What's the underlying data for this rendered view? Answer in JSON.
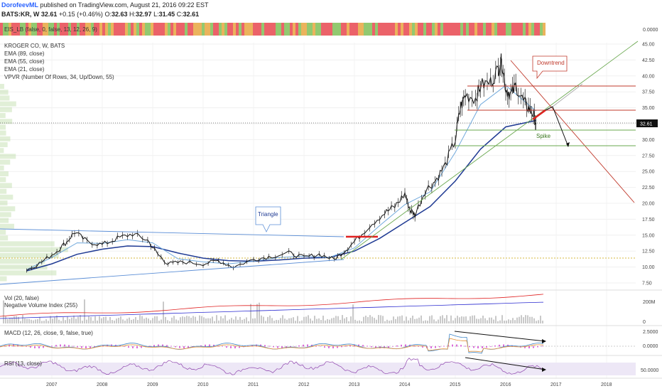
{
  "header": {
    "author": "DorofeevML",
    "published": "published on TradingView.com, August 21, 2016 09:22 EST",
    "symbol": "BATS:KR, W",
    "last": "32.61",
    "change": "+0.15 (+0.46%)",
    "o_label": "O:",
    "o_value": "32.63",
    "h_label": "H:",
    "h_value": "32.97",
    "l_label": "L:",
    "l_value": "31.45",
    "c_label": "C:",
    "c_value": "32.61"
  },
  "panels": {
    "eis": {
      "label": "EIS_LB (false, 0, false, 13, 12, 26, 9)",
      "tick": "0.0000",
      "colors": {
        "red": "#e8464f",
        "green": "#7fbf57",
        "orange": "#e8a640"
      }
    },
    "price": {
      "legend": [
        "KROGER CO, W, BATS",
        "EMA (89, close)",
        "EMA (55, close)",
        "EMA (21, close)",
        "VPVR (Number Of Rows, 34, Up/Down, 55)"
      ],
      "last_label": "32.61"
    },
    "vol": {
      "legend": [
        "Vol (20, false)",
        "Negative Volume Index (255)"
      ],
      "tick_top": "200M",
      "tick_bottom": "0"
    },
    "macd": {
      "legend": "MACD (12, 26, close, 9, false, true)",
      "tick_top": "2.5000",
      "tick_mid": "0.0000"
    },
    "rsi": {
      "legend": "RSI (13, close)",
      "tick": "50.0000"
    }
  },
  "annotations": {
    "triangle": "Triangle",
    "downtrend": "Downtrend",
    "spike": "Spike"
  },
  "chart_data": {
    "type": "candlestick",
    "title": "KROGER CO, W, BATS",
    "x_axis": {
      "ticks": [
        "2007",
        "2008",
        "2009",
        "2010",
        "2011",
        "2012",
        "2013",
        "2014",
        "2015",
        "2016",
        "2017",
        "2018"
      ]
    },
    "y_axis": {
      "range": [
        7.5,
        45.0
      ],
      "ticks": [
        "45.00",
        "42.50",
        "40.00",
        "37.50",
        "35.00",
        "32.50",
        "30.00",
        "27.50",
        "25.00",
        "22.50",
        "20.00",
        "17.50",
        "15.00",
        "12.50",
        "10.00",
        "7.50"
      ]
    },
    "price_path": [
      [
        2006.5,
        9.5
      ],
      [
        2006.8,
        10.8
      ],
      [
        2007.1,
        12.5
      ],
      [
        2007.3,
        14.0
      ],
      [
        2007.45,
        15.5
      ],
      [
        2007.7,
        14.0
      ],
      [
        2008.0,
        13.5
      ],
      [
        2008.3,
        14.5
      ],
      [
        2008.6,
        15.2
      ],
      [
        2008.9,
        14.2
      ],
      [
        2009.1,
        12.0
      ],
      [
        2009.3,
        10.5
      ],
      [
        2009.6,
        10.8
      ],
      [
        2010.0,
        10.5
      ],
      [
        2010.3,
        11.0
      ],
      [
        2010.6,
        10.0
      ],
      [
        2011.0,
        11.2
      ],
      [
        2011.3,
        11.6
      ],
      [
        2011.7,
        12.2
      ],
      [
        2012.0,
        11.5
      ],
      [
        2012.3,
        12.0
      ],
      [
        2012.6,
        11.2
      ],
      [
        2012.8,
        12.5
      ],
      [
        2013.0,
        14.0
      ],
      [
        2013.3,
        16.5
      ],
      [
        2013.6,
        18.5
      ],
      [
        2013.8,
        19.5
      ],
      [
        2014.0,
        21.5
      ],
      [
        2014.1,
        19.0
      ],
      [
        2014.2,
        18.2
      ],
      [
        2014.4,
        22.0
      ],
      [
        2014.6,
        23.5
      ],
      [
        2014.8,
        26.0
      ],
      [
        2015.0,
        30.0
      ],
      [
        2015.1,
        35.0
      ],
      [
        2015.2,
        37.0
      ],
      [
        2015.4,
        36.5
      ],
      [
        2015.5,
        38.5
      ],
      [
        2015.7,
        39.0
      ],
      [
        2015.85,
        41.0
      ],
      [
        2015.92,
        42.5
      ],
      [
        2016.0,
        38.0
      ],
      [
        2016.1,
        37.0
      ],
      [
        2016.2,
        38.5
      ],
      [
        2016.35,
        36.0
      ],
      [
        2016.45,
        35.0
      ],
      [
        2016.55,
        34.0
      ],
      [
        2016.6,
        32.6
      ]
    ],
    "ema_21": [
      [
        2006.5,
        9.6
      ],
      [
        2007.0,
        11.5
      ],
      [
        2007.5,
        13.8
      ],
      [
        2008.0,
        13.7
      ],
      [
        2008.5,
        14.3
      ],
      [
        2009.0,
        13.8
      ],
      [
        2009.5,
        11.3
      ],
      [
        2010.0,
        10.8
      ],
      [
        2010.5,
        10.5
      ],
      [
        2011.0,
        10.9
      ],
      [
        2011.5,
        11.5
      ],
      [
        2012.0,
        11.7
      ],
      [
        2012.5,
        11.5
      ],
      [
        2013.0,
        13.0
      ],
      [
        2013.5,
        16.5
      ],
      [
        2014.0,
        19.8
      ],
      [
        2014.5,
        21.8
      ],
      [
        2015.0,
        28.0
      ],
      [
        2015.5,
        35.5
      ],
      [
        2016.0,
        38.5
      ],
      [
        2016.6,
        34.5
      ]
    ],
    "ema_89": [
      [
        2006.5,
        9.4
      ],
      [
        2007.0,
        10.5
      ],
      [
        2007.5,
        12.0
      ],
      [
        2008.0,
        12.8
      ],
      [
        2008.5,
        13.3
      ],
      [
        2009.0,
        13.2
      ],
      [
        2009.5,
        12.2
      ],
      [
        2010.0,
        11.4
      ],
      [
        2010.5,
        11.0
      ],
      [
        2011.0,
        10.9
      ],
      [
        2011.5,
        11.1
      ],
      [
        2012.0,
        11.4
      ],
      [
        2012.5,
        11.5
      ],
      [
        2013.0,
        12.5
      ],
      [
        2013.5,
        14.5
      ],
      [
        2014.0,
        17.0
      ],
      [
        2014.5,
        19.5
      ],
      [
        2015.0,
        23.5
      ],
      [
        2015.5,
        28.5
      ],
      [
        2016.0,
        32.0
      ],
      [
        2016.6,
        33.0
      ]
    ],
    "last_price": 32.61
  }
}
